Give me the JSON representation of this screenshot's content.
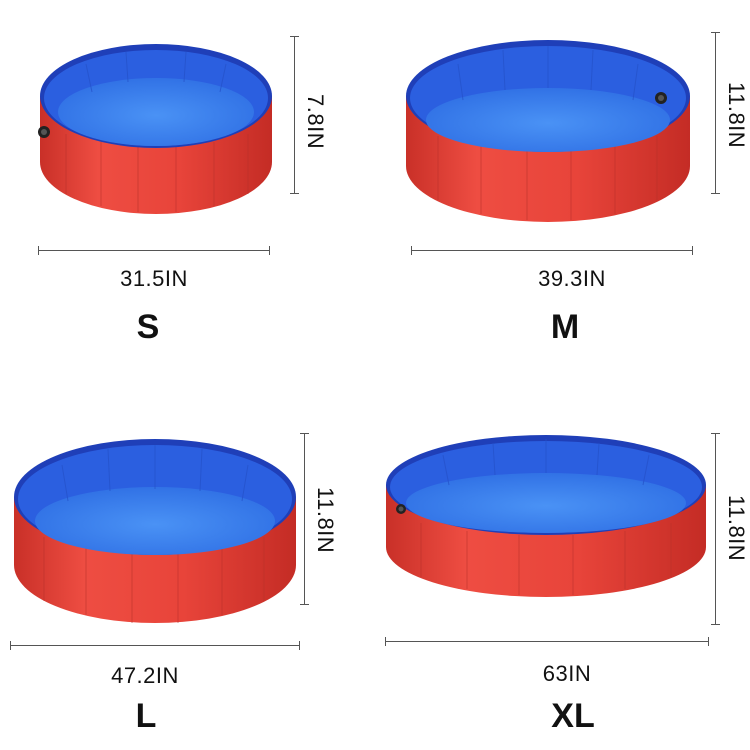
{
  "colors": {
    "pool_wall": "#e8443a",
    "pool_wall_dark": "#c93028",
    "pool_inner": "#2b5fe0",
    "pool_floor": "#3d86f0",
    "rim": "#1f3fb8",
    "dimension_line": "#555555"
  },
  "pools": [
    {
      "size": "S",
      "width": "31.5IN",
      "height": "7.8IN"
    },
    {
      "size": "M",
      "width": "39.3IN",
      "height": "11.8IN"
    },
    {
      "size": "L",
      "width": "47.2IN",
      "height": "11.8IN"
    },
    {
      "size": "XL",
      "width": "63IN",
      "height": "11.8IN"
    }
  ]
}
